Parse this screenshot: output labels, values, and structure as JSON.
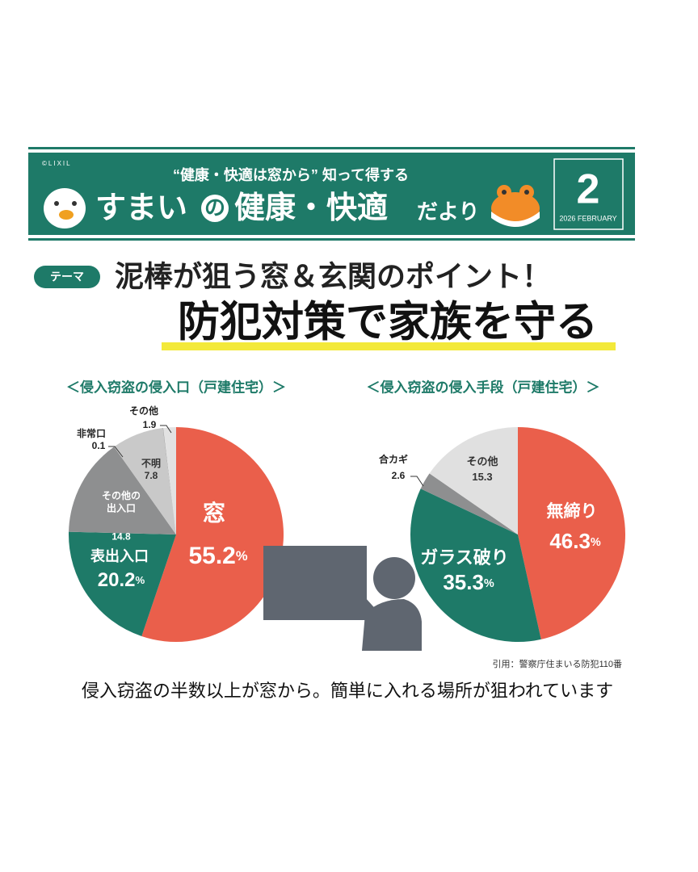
{
  "header": {
    "brand": "©LIXIL",
    "tagline": "“健康・快適は窓から” 知って得する",
    "title": [
      "すまい",
      "の",
      "健康・快適",
      "だより"
    ],
    "issue": "2",
    "date": "2026 FEBRUARY"
  },
  "theme": {
    "badge": "テーマ",
    "subtitle": "泥棒が狙う窓＆玄関のポイント！",
    "title": "防犯対策で家族を守る"
  },
  "chart_data": [
    {
      "type": "pie",
      "title": "＜侵入窃盗の侵入口（戸建住宅）＞",
      "categories": [
        "窓",
        "表出入口",
        "その他の\n出入口",
        "不明",
        "非常口",
        "その他"
      ],
      "values": [
        55.2,
        20.2,
        14.8,
        7.8,
        0.1,
        1.9
      ],
      "value_labels": [
        "55.2%",
        "20.2%",
        "14.8",
        "7.8",
        "0.1",
        "1.9"
      ],
      "colors": [
        "#ea5f4b",
        "#1e7a68",
        "#8e8f90",
        "#c9c9c9",
        "#a9a9a9",
        "#e2e2e2"
      ]
    },
    {
      "type": "pie",
      "title": "＜侵入窃盗の侵入手段（戸建住宅）＞",
      "categories": [
        "無締り",
        "ガラス破り",
        "合カギ",
        "その他"
      ],
      "values": [
        46.3,
        35.3,
        2.6,
        15.3
      ],
      "value_labels": [
        "46.3%",
        "35.3%",
        "2.6",
        "15.3"
      ],
      "colors": [
        "#ea5f4b",
        "#1e7a68",
        "#8e8f90",
        "#e0e0e0"
      ]
    }
  ],
  "source": "引用：警察庁住まいる防犯110番",
  "caption": "侵入窃盗の半数以上が窓から。簡単に入れる場所が狙われています"
}
